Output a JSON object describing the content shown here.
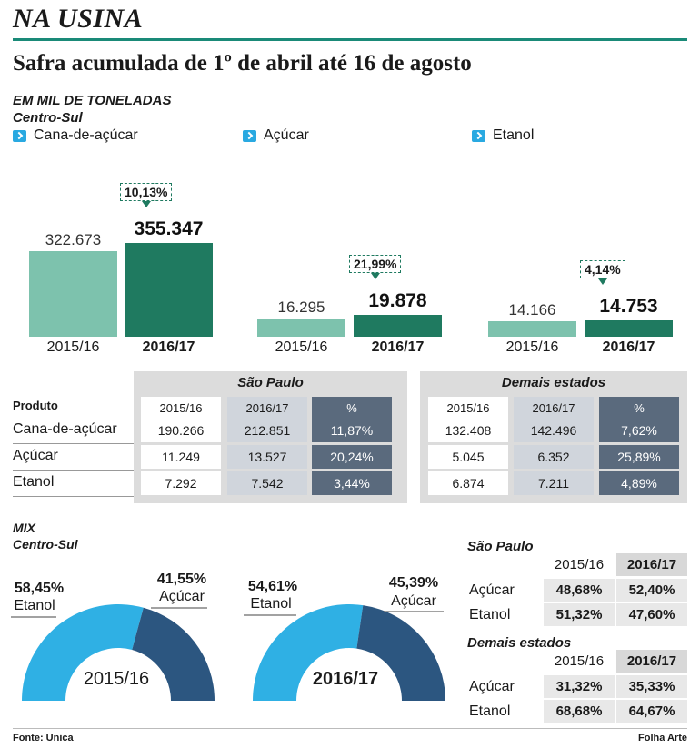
{
  "header": {
    "kicker": "NA USINA",
    "headline": "Safra acumulada de 1º de abril até 16 de agosto",
    "unit": "EM MIL DE TONELADAS",
    "region": "Centro-Sul"
  },
  "legend": [
    "Cana-de-açúcar",
    "Açúcar",
    "Etanol"
  ],
  "colors": {
    "light_green": "#7dc2ad",
    "dark_green": "#1f7a60",
    "blue_light": "#2fb0e4",
    "blue_dark": "#2c5680",
    "table_dark": "#5a6a7d"
  },
  "chart_data": [
    {
      "type": "bar",
      "groups": [
        {
          "product": "Cana-de-açúcar",
          "categories": [
            "2015/16",
            "2016/17"
          ],
          "values": [
            322673,
            355347
          ],
          "value_labels": [
            "322.673",
            "355.347"
          ],
          "change_label": "10,13%"
        },
        {
          "product": "Açúcar",
          "categories": [
            "2015/16",
            "2016/17"
          ],
          "values": [
            16295,
            19878
          ],
          "value_labels": [
            "16.295",
            "19.878"
          ],
          "change_label": "21,99%"
        },
        {
          "product": "Etanol",
          "categories": [
            "2015/16",
            "2016/17"
          ],
          "values": [
            14166,
            14753
          ],
          "value_labels": [
            "14.166",
            "14.753"
          ],
          "change_label": "4,14%"
        }
      ],
      "scale": "per-group"
    },
    {
      "type": "pie",
      "title": "2015/16",
      "slices": [
        {
          "name": "Etanol",
          "value": 58.45,
          "label": "58,45%"
        },
        {
          "name": "Açúcar",
          "value": 41.55,
          "label": "41,55%"
        }
      ]
    },
    {
      "type": "pie",
      "title": "2016/17",
      "slices": [
        {
          "name": "Etanol",
          "value": 54.61,
          "label": "54,61%"
        },
        {
          "name": "Açúcar",
          "value": 45.39,
          "label": "45,39%"
        }
      ]
    }
  ],
  "table": {
    "product_header": "Produto",
    "sp_title": "São Paulo",
    "other_title": "Demais estados",
    "col_headers": [
      "2015/16",
      "2016/17",
      "%"
    ],
    "rows": [
      {
        "product": "Cana-de-açúcar",
        "sp": [
          "190.266",
          "212.851",
          "11,87%"
        ],
        "other": [
          "132.408",
          "142.496",
          "7,62%"
        ]
      },
      {
        "product": "Açúcar",
        "sp": [
          "11.249",
          "13.527",
          "20,24%"
        ],
        "other": [
          "5.045",
          "6.352",
          "25,89%"
        ]
      },
      {
        "product": "Etanol",
        "sp": [
          "7.292",
          "7.542",
          "3,44%"
        ],
        "other": [
          "6.874",
          "7.211",
          "4,89%"
        ]
      }
    ]
  },
  "mix": {
    "title": "MIX",
    "region": "Centro-Sul",
    "sp": {
      "title": "São Paulo",
      "headers": [
        "2015/16",
        "2016/17"
      ],
      "rows": [
        {
          "label": "Açúcar",
          "values": [
            "48,68%",
            "52,40%"
          ]
        },
        {
          "label": "Etanol",
          "values": [
            "51,32%",
            "47,60%"
          ]
        }
      ]
    },
    "other": {
      "title": "Demais estados",
      "headers": [
        "2015/16",
        "2016/17"
      ],
      "rows": [
        {
          "label": "Açúcar",
          "values": [
            "31,32%",
            "35,33%"
          ]
        },
        {
          "label": "Etanol",
          "values": [
            "68,68%",
            "64,67%"
          ]
        }
      ]
    }
  },
  "footer": {
    "source": "Fonte: Unica",
    "credit": "Folha Arte"
  }
}
